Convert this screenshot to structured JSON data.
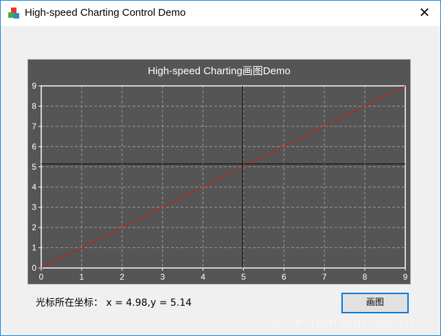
{
  "window": {
    "title": "High-speed Charting Control Demo",
    "close_icon": "close-icon"
  },
  "status": {
    "text": "光标所在坐标： x = 4.98,y = 5.14"
  },
  "button": {
    "draw_label": "画图"
  },
  "watermark": "https://blog.csdn.net/qq_15029743",
  "chart_data": {
    "type": "line",
    "title": "High-speed Charting画图Demo",
    "xlim": [
      0,
      9
    ],
    "ylim": [
      0,
      9
    ],
    "xticks": [
      "0",
      "1",
      "2",
      "3",
      "4",
      "5",
      "6",
      "7",
      "8",
      "9"
    ],
    "yticks": [
      "0",
      "1",
      "2",
      "3",
      "4",
      "5",
      "6",
      "7",
      "8",
      "9"
    ],
    "grid": true,
    "series": [
      {
        "x": [
          0,
          9
        ],
        "y": [
          0,
          9
        ],
        "color": "#ff0000",
        "style": "dotted"
      }
    ],
    "cursor": {
      "x": 4.98,
      "y": 5.14
    },
    "colors": {
      "background": "#555555",
      "grid": "#9a9a9a",
      "axis": "#ffffff",
      "text": "#ffffff",
      "crosshair": "#000000"
    }
  }
}
